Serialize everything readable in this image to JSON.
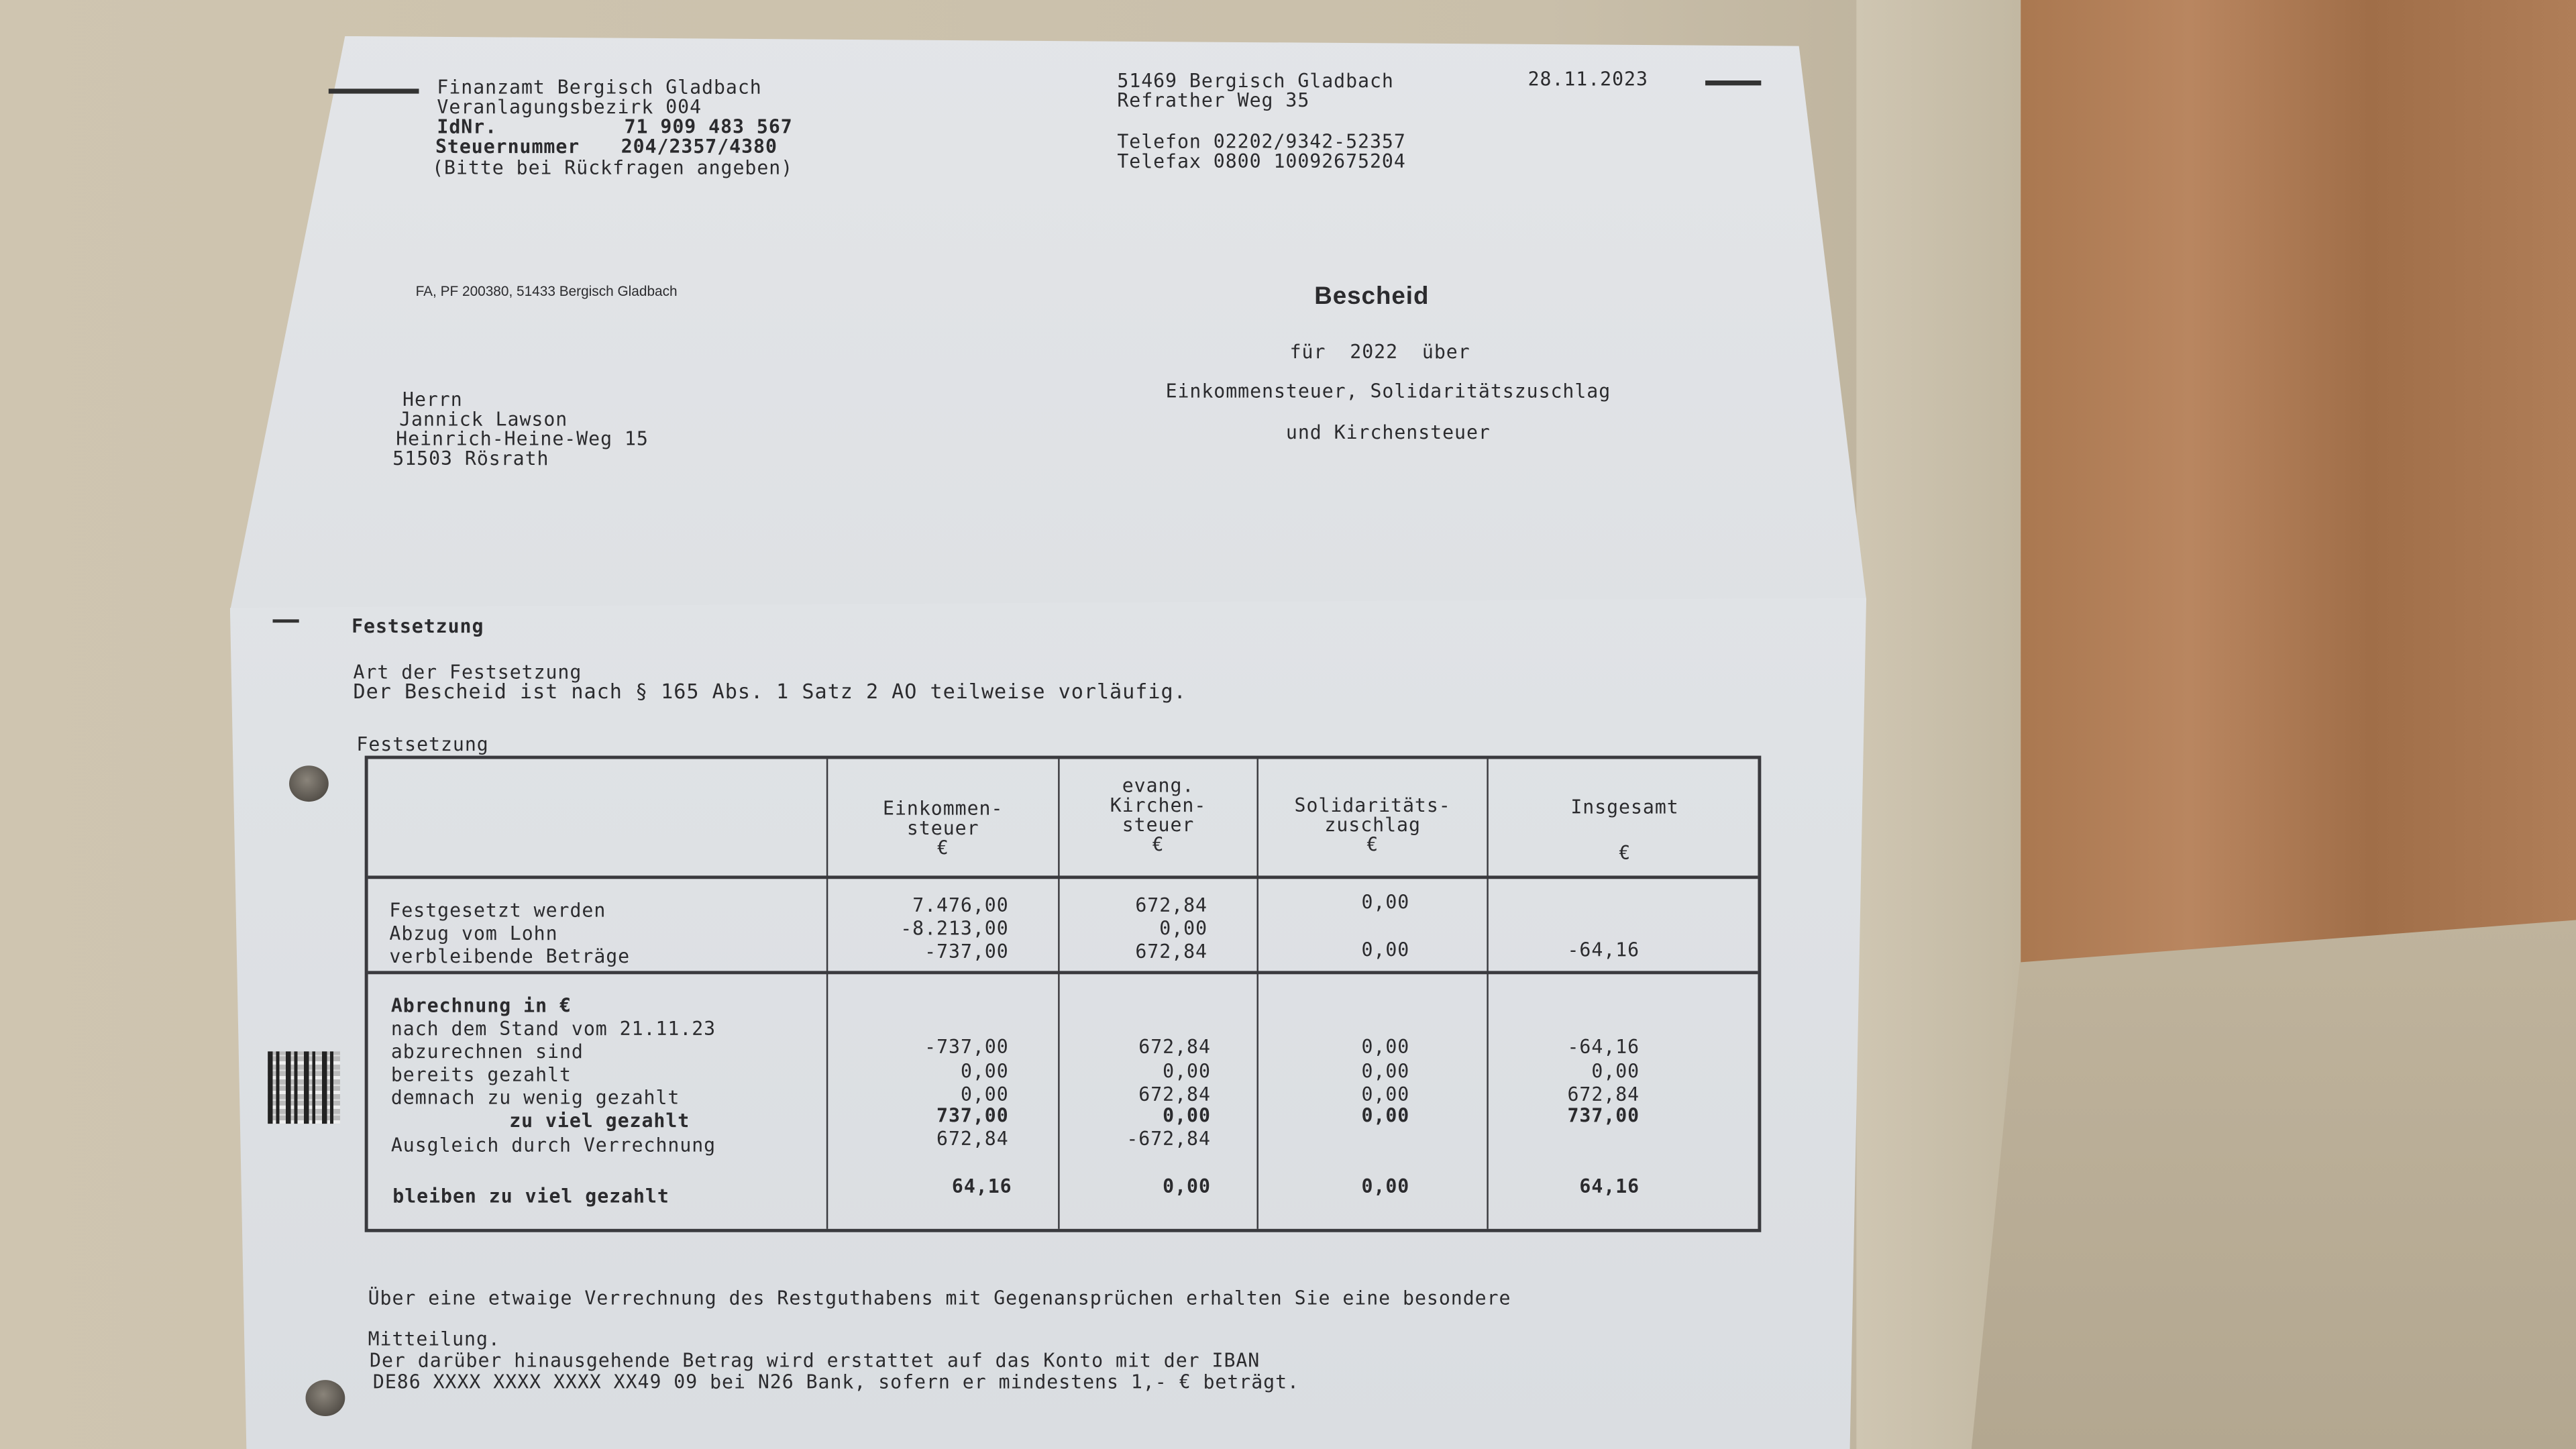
{
  "sender": {
    "office": "Finanzamt Bergisch Gladbach",
    "district": "Veranlagungsbezirk 004",
    "idnr_label": "IdNr.",
    "idnr": "71 909 483 567",
    "taxnr_label": "Steuernummer",
    "taxnr": "204/2357/4380",
    "note": "(Bitte bei Rückfragen angeben)",
    "city": "51469 Bergisch Gladbach",
    "street": "Refrather Weg 35",
    "date": "28.11.2023",
    "phone": "Telefon 02202/9342-52357",
    "fax": "Telefax 0800 10092675204",
    "return_address": "FA, PF 200380, 51433 Bergisch Gladbach"
  },
  "recipient": {
    "salutation": "Herrn",
    "name": "Jannick Lawson",
    "street": "Heinrich-Heine-Weg 15",
    "city": "51503 Rösrath"
  },
  "heading": {
    "title": "Bescheid",
    "line1": "für  2022  über",
    "line2": "Einkommensteuer, Solidaritätszuschlag",
    "line3": "und Kirchensteuer"
  },
  "festsetzung": {
    "section_title": "Festsetzung",
    "type_label": "Art der Festsetzung",
    "type_text": "Der Bescheid ist nach § 165 Abs. 1 Satz 2 AO teilweise vorläufig.",
    "table_title": "Festsetzung"
  },
  "table": {
    "headers": [
      "Einkommen-\nsteuer\n€",
      "evang.\nKirchen-\nsteuer\n€",
      "Solidaritäts-\nzuschlag\n€",
      "Insgesamt\n\n€"
    ],
    "block1_labels": "Festgesetzt werden\nAbzug vom Lohn\nverbleibende Beträge",
    "block1_cols": [
      "7.476,00\n-8.213,00\n-737,00",
      "672,84\n0,00\n672,84",
      "0,00\n\n0,00",
      "\n\n-64,16"
    ],
    "block2_heading": "Abrechnung in €",
    "block2_labels": "nach dem Stand vom 21.11.23\nabzurechnen sind\nbereits gezahlt\ndemnach zu wenig gezahlt",
    "block2_bold_label": "zu viel gezahlt",
    "block2_label_after": "Ausgleich durch Verrechnung",
    "block2_cols": [
      "-737,00\n0,00\n0,00",
      "672,84\n0,00\n672,84",
      "0,00\n0,00\n0,00",
      "-64,16\n0,00\n672,84"
    ],
    "block2_bold_row": [
      "737,00",
      "0,00",
      "0,00",
      "737,00"
    ],
    "block2_offset_row": [
      "672,84",
      "-672,84",
      "",
      ""
    ],
    "final_label": "bleiben zu viel gezahlt",
    "final_row": [
      "64,16",
      "0,00",
      "0,00",
      "64,16"
    ]
  },
  "footer": {
    "line1": "Über eine etwaige Verrechnung des Restguthabens mit Gegenansprüchen erhalten Sie eine besondere",
    "line2": "Mitteilung.",
    "line3": "Der darüber hinausgehende Betrag wird erstattet auf das Konto mit der IBAN",
    "line4": "DE86 XXXX XXXX XXXX XX49 09 bei N26 Bank, sofern er mindestens 1,- € beträgt."
  },
  "colors": {
    "paper": "#dfe2e6",
    "ink": "#2b2b2e",
    "fabric": "#c9bfaa",
    "wood": "#a9774f"
  }
}
